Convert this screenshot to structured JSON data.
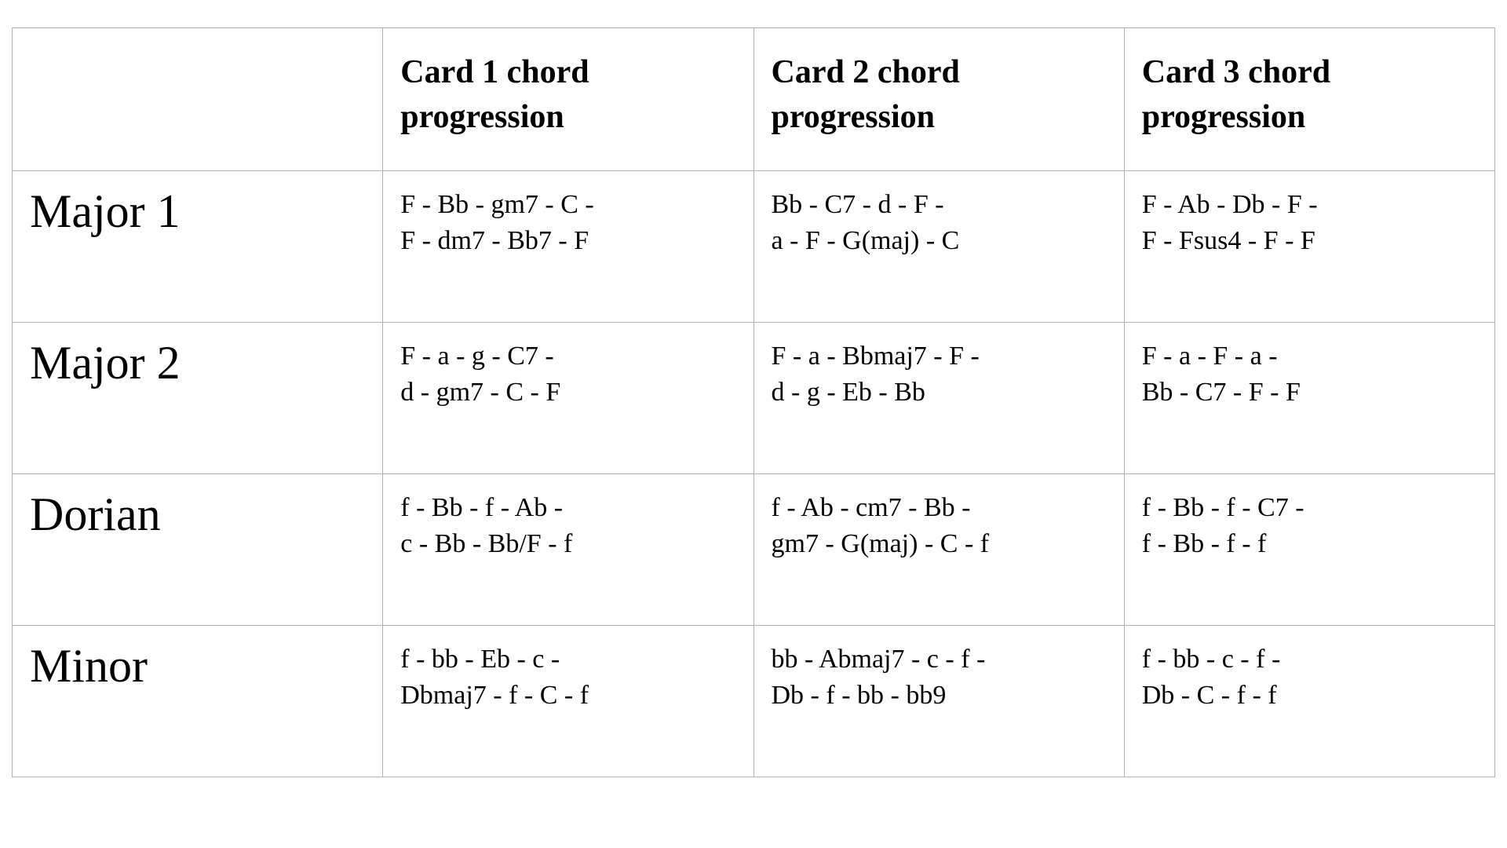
{
  "table": {
    "columns": [
      "Card 1 chord progression",
      "Card 2 chord progression",
      "Card 3 chord progression"
    ],
    "rows": [
      {
        "label": "Major 1",
        "cells": [
          {
            "line1": "F - Bb -  gm7 -  C -",
            "line2": "F - dm7 - Bb7 - F"
          },
          {
            "line1": "Bb - C7 -  d -  F -",
            "line2": "a - F - G(maj) - C"
          },
          {
            "line1": "F - Ab -  Db -  F -",
            "line2": "F - Fsus4 - F - F"
          }
        ]
      },
      {
        "label": "Major 2",
        "cells": [
          {
            "line1": "F - a -  g -  C7 -",
            "line2": "d - gm7 - C - F"
          },
          {
            "line1": "F - a -  Bbmaj7 -  F -",
            "line2": "d - g - Eb - Bb"
          },
          {
            "line1": "F - a -  F -  a -",
            "line2": "Bb - C7 - F - F"
          }
        ]
      },
      {
        "label": "Dorian",
        "cells": [
          {
            "line1": "f - Bb -  f -  Ab -",
            "line2": "c - Bb - Bb/F - f"
          },
          {
            "line1": "f - Ab -  cm7 -  Bb -",
            "line2": "gm7 - G(maj) - C - f"
          },
          {
            "line1": "f - Bb -  f -  C7 -",
            "line2": "f - Bb - f - f"
          }
        ]
      },
      {
        "label": "Minor",
        "cells": [
          {
            "line1": "f - bb -  Eb -  c -",
            "line2": "Dbmaj7 - f - C - f"
          },
          {
            "line1": "bb - Abmaj7 -  c -  f -",
            "line2": "Db - f - bb - bb9"
          },
          {
            "line1": "f - bb -  c -  f -",
            "line2": "Db - C - f - f"
          }
        ]
      }
    ],
    "colors": {
      "border": "#b0b0b0",
      "background": "#ffffff",
      "text": "#000000"
    },
    "fontsizes": {
      "header": 42,
      "row_label": 60,
      "cell": 34
    }
  }
}
